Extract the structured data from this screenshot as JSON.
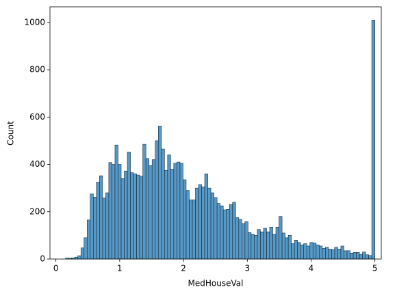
{
  "chart_data": {
    "type": "histogram",
    "xlabel": "MedHouseVal",
    "ylabel": "Count",
    "bins": [
      0.15,
      0.1985,
      0.247,
      0.2955,
      0.344,
      0.3925,
      0.441,
      0.4895,
      0.538,
      0.5865,
      0.635,
      0.6835,
      0.732,
      0.7805,
      0.829,
      0.8775,
      0.926,
      0.9745,
      1.023,
      1.0715,
      1.12,
      1.1685,
      1.217,
      1.2655,
      1.314,
      1.3625,
      1.411,
      1.4595,
      1.508,
      1.5565,
      1.605,
      1.6535,
      1.702,
      1.7505,
      1.799,
      1.8475,
      1.896,
      1.9445,
      1.993,
      2.0415,
      2.09,
      2.1385,
      2.187,
      2.2355,
      2.284,
      2.3325,
      2.381,
      2.4295,
      2.478,
      2.5265,
      2.575,
      2.6235,
      2.672,
      2.7205,
      2.769,
      2.8175,
      2.866,
      2.9145,
      2.963,
      3.0115,
      3.06,
      3.1085,
      3.157,
      3.2055,
      3.254,
      3.3025,
      3.351,
      3.3995,
      3.448,
      3.4965,
      3.545,
      3.5935,
      3.642,
      3.6905,
      3.739,
      3.7875,
      3.836,
      3.8845,
      3.933,
      3.9815,
      4.03,
      4.0785,
      4.127,
      4.1755,
      4.224,
      4.2725,
      4.321,
      4.3695,
      4.418,
      4.4665,
      4.515,
      4.5635,
      4.612,
      4.6605,
      4.709,
      4.7575,
      4.806,
      4.8545,
      4.903,
      4.9515,
      5.0
    ],
    "values": [
      4,
      4,
      5,
      8,
      14,
      47,
      90,
      165,
      275,
      262,
      325,
      352,
      258,
      280,
      408,
      400,
      482,
      400,
      340,
      372,
      452,
      365,
      360,
      355,
      350,
      485,
      425,
      395,
      420,
      500,
      562,
      465,
      375,
      440,
      380,
      405,
      410,
      405,
      335,
      290,
      250,
      250,
      300,
      315,
      305,
      360,
      300,
      280,
      260,
      235,
      225,
      208,
      210,
      230,
      240,
      175,
      168,
      150,
      158,
      112,
      105,
      100,
      125,
      115,
      130,
      115,
      135,
      105,
      135,
      180,
      110,
      90,
      100,
      65,
      80,
      70,
      60,
      65,
      55,
      70,
      68,
      60,
      55,
      45,
      50,
      42,
      40,
      50,
      42,
      55,
      35,
      35,
      25,
      28,
      28,
      20,
      30,
      18,
      15,
      1010
    ],
    "color": "#1f77b4",
    "xlim": [
      -0.093,
      5.1
    ],
    "xticks": [
      0,
      1,
      2,
      3,
      4,
      5
    ],
    "ylim": [
      0,
      1066
    ],
    "yticks": [
      0,
      200,
      400,
      600,
      800,
      1000
    ]
  }
}
